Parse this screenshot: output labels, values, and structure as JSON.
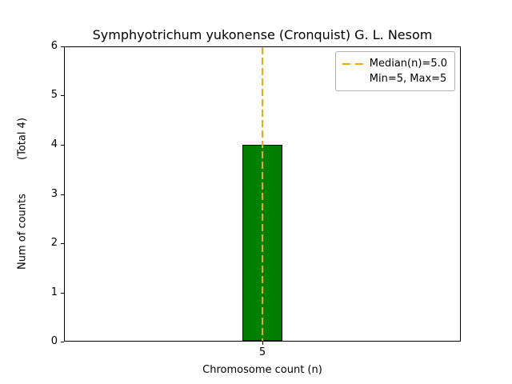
{
  "chart_data": {
    "type": "bar",
    "title": "Symphyotrichum yukonense (Cronquist) G. L. Nesom",
    "xlabel": "Chromosome count (n)",
    "ylabel": "Num of counts",
    "ylabel_secondary": "(Total 4)",
    "categories": [
      "5"
    ],
    "values": [
      4
    ],
    "total": 4,
    "ylim": [
      0,
      6
    ],
    "yticks": [
      0,
      1,
      2,
      3,
      4,
      5,
      6
    ],
    "median": 5.0,
    "min": 5,
    "max": 5,
    "bar_color": "#008000",
    "bar_edge_color": "#000000",
    "median_line_color": "#FFA500",
    "legend": [
      "Median(n)=5.0",
      "Min=5, Max=5"
    ],
    "legend_position": "upper right",
    "grid": false
  }
}
